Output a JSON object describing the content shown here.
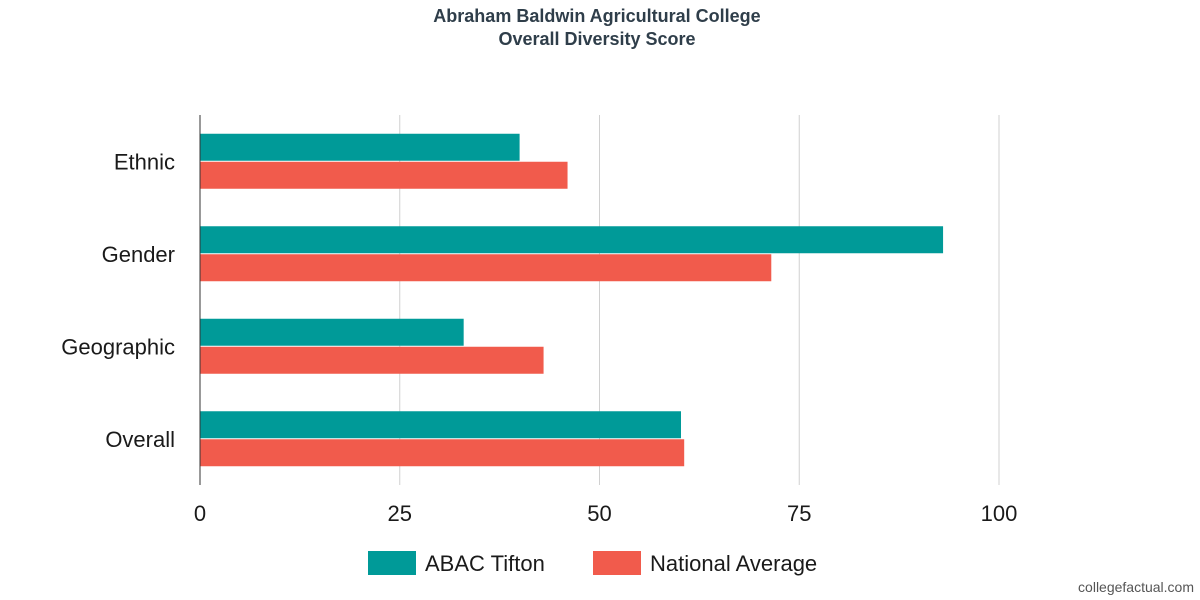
{
  "chart_data": {
    "type": "bar",
    "orientation": "horizontal",
    "title": "Abraham Baldwin Agricultural College",
    "subtitle": "Overall Diversity Score",
    "categories": [
      "Ethnic",
      "Gender",
      "Geographic",
      "Overall"
    ],
    "series": [
      {
        "name": "ABAC Tifton",
        "color": "#009a98",
        "values": [
          40,
          93,
          33,
          60.2
        ]
      },
      {
        "name": "National Average",
        "color": "#f15b4c",
        "values": [
          46,
          71.5,
          43,
          60.6
        ]
      }
    ],
    "xlim": [
      0,
      100
    ],
    "xticks": [
      "0",
      "25",
      "50",
      "75",
      "100"
    ],
    "grid": true,
    "legend_position": "bottom"
  },
  "watermark": "collegefactual.com"
}
